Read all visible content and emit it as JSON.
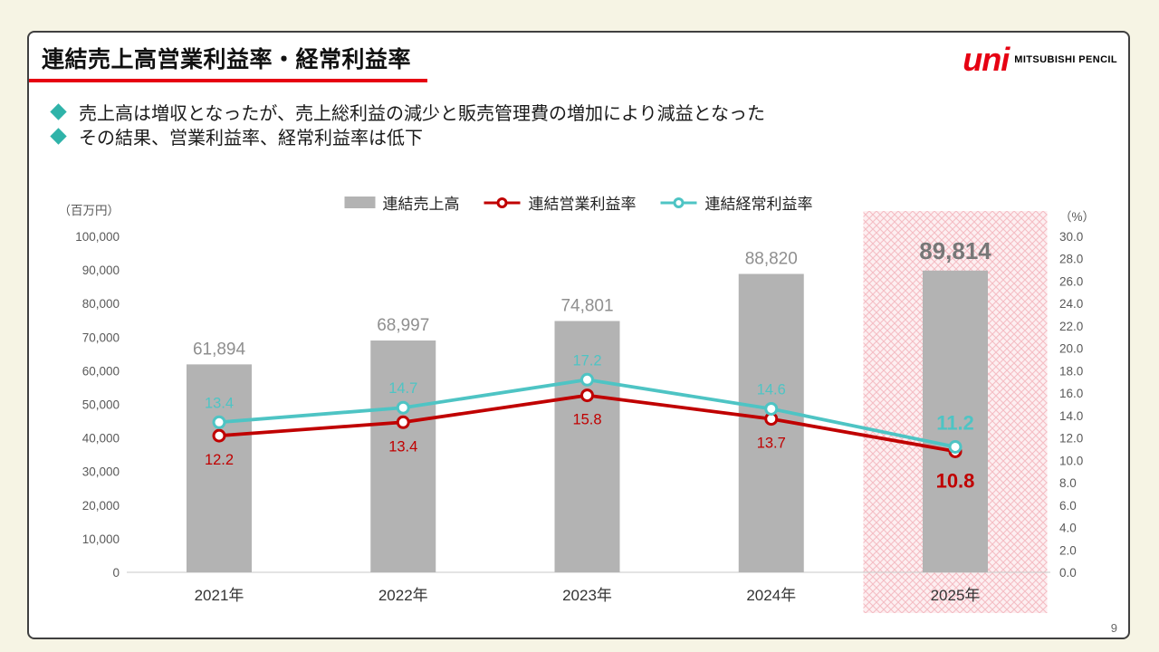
{
  "header": {
    "title": "連結売上高営業利益率・経常利益率",
    "logo_main": "uni",
    "logo_sub": "MITSUBISHI PENCIL"
  },
  "bullets": [
    "売上高は増収となったが、売上総利益の減少と販売管理費の増加により減益となった",
    "その結果、営業利益率、経常利益率は低下"
  ],
  "page_number": "9",
  "accent": {
    "title_underline": "#e60012",
    "bullet_diamond": "#2fb3a9",
    "card_border": "#404040",
    "background": "#f6f4e4"
  },
  "chart_data": {
    "type": "combo-bar-line",
    "categories": [
      "2021年",
      "2022年",
      "2023年",
      "2024年",
      "2025年"
    ],
    "series": [
      {
        "name": "連結売上高",
        "type": "bar",
        "axis": "left",
        "color": "#b3b3b3",
        "values": [
          61894,
          68997,
          74801,
          88820,
          89814
        ]
      },
      {
        "name": "連結営業利益率",
        "type": "line",
        "axis": "right",
        "color": "#c00000",
        "label_side": "below",
        "values": [
          12.2,
          13.4,
          15.8,
          13.7,
          10.8
        ]
      },
      {
        "name": "連結経常利益率",
        "type": "line",
        "axis": "right",
        "color": "#4ec4c4",
        "label_side": "above",
        "values": [
          13.4,
          14.7,
          17.2,
          14.6,
          11.2
        ]
      }
    ],
    "left_axis": {
      "unit": "（百万円）",
      "min": 0,
      "max": 100000,
      "step": 10000
    },
    "right_axis": {
      "unit": "（%）",
      "min": 0,
      "max": 30,
      "step": 2
    },
    "highlight_category": "2025年",
    "highlight_fill": "#fdeff1",
    "highlight_line": "#f5bdc4",
    "legend_position": "top",
    "gridlines": false
  }
}
